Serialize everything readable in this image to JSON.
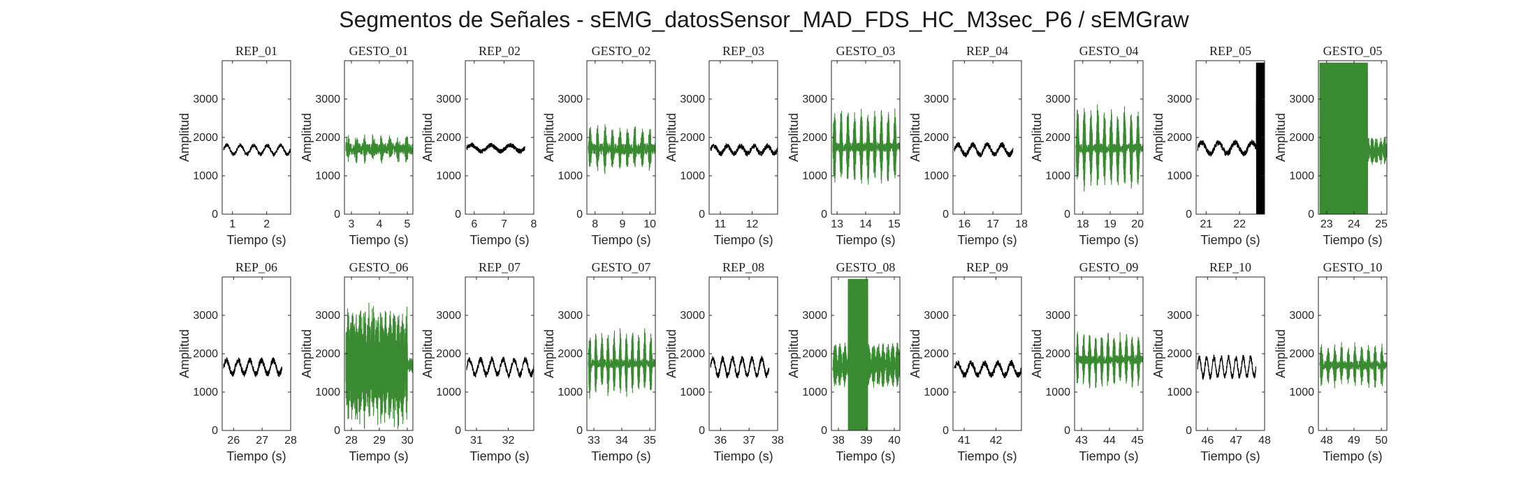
{
  "figure": {
    "title": "Segmentos de Señales - sEMG_datosSensor_MAD_FDS_HC_M3sec_P6 / sEMGraw"
  },
  "colors": {
    "rep": "#000000",
    "gesto": "#3a8a32",
    "axis": "#262626"
  },
  "chart_data": [
    {
      "type": "line",
      "title": "REP_01",
      "xlabel": "Tiempo (s)",
      "ylabel": "Amplitud",
      "xlim": [
        0.7,
        2.7
      ],
      "ylim": [
        0,
        4000
      ],
      "xticks": [
        1,
        2
      ],
      "yticks": [
        0,
        1000,
        2000,
        3000
      ],
      "color": "#000000",
      "signal": {
        "center": 1680,
        "amp": 120,
        "noise": 50,
        "cycles": 5,
        "kind": "wave"
      }
    },
    {
      "type": "line",
      "title": "GESTO_01",
      "xlabel": "Tiempo (s)",
      "ylabel": "Amplitud",
      "xlim": [
        2.75,
        5.2
      ],
      "ylim": [
        0,
        4000
      ],
      "xticks": [
        3,
        4,
        5
      ],
      "yticks": [
        0,
        1000,
        2000,
        3000
      ],
      "color": "#3a8a32",
      "signal": {
        "center": 1700,
        "amp": 280,
        "noise": 150,
        "cycles": 8,
        "kind": "burst"
      }
    },
    {
      "type": "line",
      "title": "REP_02",
      "xlabel": "Tiempo (s)",
      "ylabel": "Amplitud",
      "xlim": [
        5.7,
        8
      ],
      "ylim": [
        0,
        4000
      ],
      "xticks": [
        6,
        7,
        8
      ],
      "yticks": [
        0,
        1000,
        2000,
        3000
      ],
      "color": "#000000",
      "signal": {
        "center": 1720,
        "amp": 80,
        "noise": 60,
        "cycles": 3,
        "kind": "wave",
        "tEnd": 7.7
      }
    },
    {
      "type": "line",
      "title": "GESTO_02",
      "xlabel": "Tiempo (s)",
      "ylabel": "Amplitud",
      "xlim": [
        7.7,
        10.2
      ],
      "ylim": [
        0,
        4000
      ],
      "xticks": [
        8,
        9,
        10
      ],
      "yticks": [
        0,
        1000,
        2000,
        3000
      ],
      "color": "#3a8a32",
      "signal": {
        "center": 1700,
        "amp": 550,
        "noise": 150,
        "cycles": 9,
        "kind": "burst"
      }
    },
    {
      "type": "line",
      "title": "REP_03",
      "xlabel": "Tiempo (s)",
      "ylabel": "Amplitud",
      "xlim": [
        10.65,
        12.8
      ],
      "ylim": [
        0,
        4000
      ],
      "xticks": [
        11,
        12
      ],
      "yticks": [
        0,
        1000,
        2000,
        3000
      ],
      "color": "#000000",
      "signal": {
        "center": 1680,
        "amp": 100,
        "noise": 70,
        "cycles": 5,
        "kind": "wave"
      }
    },
    {
      "type": "line",
      "title": "GESTO_03",
      "xlabel": "Tiempo (s)",
      "ylabel": "Amplitud",
      "xlim": [
        12.8,
        15.2
      ],
      "ylim": [
        0,
        4000
      ],
      "xticks": [
        13,
        14,
        15
      ],
      "yticks": [
        0,
        1000,
        2000,
        3000
      ],
      "color": "#3a8a32",
      "signal": {
        "center": 1750,
        "amp": 1000,
        "noise": 120,
        "cycles": 10,
        "kind": "burst"
      }
    },
    {
      "type": "line",
      "title": "REP_04",
      "xlabel": "Tiempo (s)",
      "ylabel": "Amplitud",
      "xlim": [
        15.6,
        18
      ],
      "ylim": [
        0,
        4000
      ],
      "xticks": [
        16,
        17,
        18
      ],
      "yticks": [
        0,
        1000,
        2000,
        3000
      ],
      "color": "#000000",
      "signal": {
        "center": 1680,
        "amp": 130,
        "noise": 70,
        "cycles": 4,
        "kind": "wave",
        "tEnd": 17.7
      }
    },
    {
      "type": "line",
      "title": "GESTO_04",
      "xlabel": "Tiempo (s)",
      "ylabel": "Amplitud",
      "xlim": [
        17.7,
        20.2
      ],
      "ylim": [
        0,
        4000
      ],
      "xticks": [
        18,
        19,
        20
      ],
      "yticks": [
        0,
        1000,
        2000,
        3000
      ],
      "color": "#3a8a32",
      "signal": {
        "center": 1720,
        "amp": 1100,
        "noise": 120,
        "cycles": 10,
        "kind": "burst"
      }
    },
    {
      "type": "line",
      "title": "REP_05",
      "xlabel": "Tiempo (s)",
      "ylabel": "Amplitud",
      "xlim": [
        20.7,
        22.75
      ],
      "ylim": [
        0,
        4000
      ],
      "xticks": [
        21,
        22
      ],
      "yticks": [
        0,
        1000,
        2000,
        3000
      ],
      "color": "#000000",
      "signal": {
        "center": 1720,
        "amp": 150,
        "noise": 80,
        "cycles": 4,
        "kind": "wave",
        "spike": true
      }
    },
    {
      "type": "line",
      "title": "GESTO_05",
      "xlabel": "Tiempo (s)",
      "ylabel": "Amplitud",
      "xlim": [
        22.7,
        25.2
      ],
      "ylim": [
        0,
        4000
      ],
      "xticks": [
        23,
        24,
        25
      ],
      "yticks": [
        0,
        1000,
        2000,
        3000
      ],
      "color": "#3a8a32",
      "signal": {
        "center": 1650,
        "amp": 250,
        "noise": 120,
        "cycles": 8,
        "kind": "saturated",
        "satEnd": 24.5
      }
    },
    {
      "type": "line",
      "title": "REP_06",
      "xlabel": "Tiempo (s)",
      "ylabel": "Amplitud",
      "xlim": [
        25.6,
        28
      ],
      "ylim": [
        0,
        4000
      ],
      "xticks": [
        26,
        27,
        28
      ],
      "yticks": [
        0,
        1000,
        2000,
        3000
      ],
      "color": "#000000",
      "signal": {
        "center": 1650,
        "amp": 180,
        "noise": 80,
        "cycles": 5,
        "kind": "wave",
        "tEnd": 27.7
      }
    },
    {
      "type": "line",
      "title": "GESTO_06",
      "xlabel": "Tiempo (s)",
      "ylabel": "Amplitud",
      "xlim": [
        27.75,
        30.2
      ],
      "ylim": [
        0,
        4000
      ],
      "xticks": [
        28,
        29,
        30
      ],
      "yticks": [
        0,
        1000,
        2000,
        3000
      ],
      "color": "#3a8a32",
      "signal": {
        "center": 1700,
        "amp": 1500,
        "noise": 250,
        "cycles": 8,
        "kind": "wild"
      }
    },
    {
      "type": "line",
      "title": "REP_07",
      "xlabel": "Tiempo (s)",
      "ylabel": "Amplitud",
      "xlim": [
        30.65,
        32.8
      ],
      "ylim": [
        0,
        4000
      ],
      "xticks": [
        31,
        32
      ],
      "yticks": [
        0,
        1000,
        2000,
        3000
      ],
      "color": "#000000",
      "signal": {
        "center": 1650,
        "amp": 200,
        "noise": 80,
        "cycles": 6,
        "kind": "wave"
      }
    },
    {
      "type": "line",
      "title": "GESTO_07",
      "xlabel": "Tiempo (s)",
      "ylabel": "Amplitud",
      "xlim": [
        32.75,
        35.2
      ],
      "ylim": [
        0,
        4000
      ],
      "xticks": [
        33,
        34,
        35
      ],
      "yticks": [
        0,
        1000,
        2000,
        3000
      ],
      "color": "#3a8a32",
      "signal": {
        "center": 1750,
        "amp": 850,
        "noise": 120,
        "cycles": 11,
        "kind": "burst"
      }
    },
    {
      "type": "line",
      "title": "REP_08",
      "xlabel": "Tiempo (s)",
      "ylabel": "Amplitud",
      "xlim": [
        35.6,
        38
      ],
      "ylim": [
        0,
        4000
      ],
      "xticks": [
        36,
        37,
        38
      ],
      "yticks": [
        0,
        1000,
        2000,
        3000
      ],
      "color": "#000000",
      "signal": {
        "center": 1650,
        "amp": 220,
        "noise": 80,
        "cycles": 6,
        "kind": "wave",
        "tEnd": 37.7
      }
    },
    {
      "type": "line",
      "title": "GESTO_08",
      "xlabel": "Tiempo (s)",
      "ylabel": "Amplitud",
      "xlim": [
        37.75,
        40.2
      ],
      "ylim": [
        0,
        4000
      ],
      "xticks": [
        38,
        39,
        40
      ],
      "yticks": [
        0,
        1000,
        2000,
        3000
      ],
      "color": "#3a8a32",
      "signal": {
        "center": 1700,
        "amp": 450,
        "noise": 150,
        "cycles": 7,
        "kind": "saturated",
        "satStart": 38.35,
        "satEnd": 39.05
      }
    },
    {
      "type": "line",
      "title": "REP_09",
      "xlabel": "Tiempo (s)",
      "ylabel": "Amplitud",
      "xlim": [
        40.65,
        42.8
      ],
      "ylim": [
        0,
        4000
      ],
      "xticks": [
        41,
        42
      ],
      "yticks": [
        0,
        1000,
        2000,
        3000
      ],
      "color": "#000000",
      "signal": {
        "center": 1600,
        "amp": 160,
        "noise": 80,
        "cycles": 5,
        "kind": "wave"
      }
    },
    {
      "type": "line",
      "title": "GESTO_09",
      "xlabel": "Tiempo (s)",
      "ylabel": "Amplitud",
      "xlim": [
        42.75,
        45.2
      ],
      "ylim": [
        0,
        4000
      ],
      "xticks": [
        43,
        44,
        45
      ],
      "yticks": [
        0,
        1000,
        2000,
        3000
      ],
      "color": "#3a8a32",
      "signal": {
        "center": 1850,
        "amp": 700,
        "noise": 120,
        "cycles": 11,
        "kind": "burst"
      }
    },
    {
      "type": "line",
      "title": "REP_10",
      "xlabel": "Tiempo (s)",
      "ylabel": "Amplitud",
      "xlim": [
        45.6,
        48
      ],
      "ylim": [
        0,
        4000
      ],
      "xticks": [
        46,
        47,
        48
      ],
      "yticks": [
        0,
        1000,
        2000,
        3000
      ],
      "color": "#000000",
      "signal": {
        "center": 1650,
        "amp": 250,
        "noise": 80,
        "cycles": 8,
        "kind": "wave",
        "tEnd": 47.7
      }
    },
    {
      "type": "line",
      "title": "GESTO_10",
      "xlabel": "Tiempo (s)",
      "ylabel": "Amplitud",
      "xlim": [
        47.7,
        50.2
      ],
      "ylim": [
        0,
        4000
      ],
      "xticks": [
        48,
        49,
        50
      ],
      "yticks": [
        0,
        1000,
        2000,
        3000
      ],
      "color": "#3a8a32",
      "signal": {
        "center": 1700,
        "amp": 550,
        "noise": 120,
        "cycles": 10,
        "kind": "burst"
      }
    }
  ]
}
